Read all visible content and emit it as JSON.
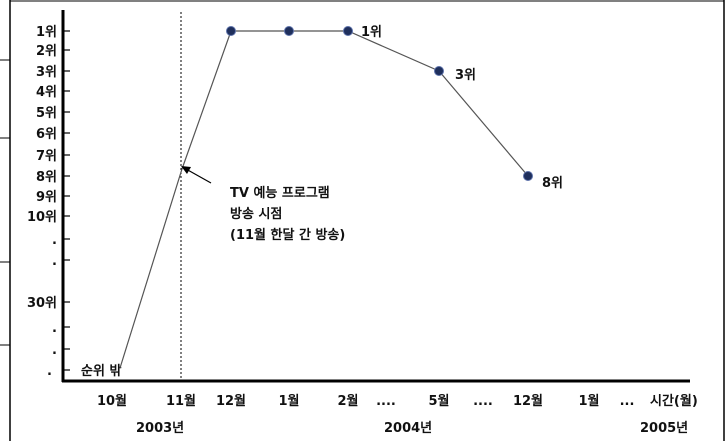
{
  "chart_data": {
    "type": "line",
    "x_ticks": [
      "10월",
      "11월",
      "12월",
      "1월",
      "2월",
      "....",
      "5월",
      "....",
      "12월",
      "1월",
      "..."
    ],
    "x_axis_label": "시간(월)",
    "years": [
      "2003년",
      "2004년",
      "2005년"
    ],
    "y_ticks": [
      "1위",
      "2위",
      "3위",
      "4위",
      "5위",
      "6위",
      "7위",
      "8위",
      "9위",
      "10위",
      ".",
      ".",
      "30위",
      ".",
      ".",
      "순위 밖"
    ],
    "series": [
      {
        "points": [
          {
            "x": "10월",
            "y": "순위 밖"
          },
          {
            "x": "11월",
            "y": "8위"
          },
          {
            "x": "12월",
            "y": "1위"
          },
          {
            "x": "1월",
            "y": "1위"
          },
          {
            "x": "2월",
            "y": "1위"
          },
          {
            "x": "5월",
            "y": "3위"
          },
          {
            "x": "12월",
            "y": "8위"
          }
        ]
      }
    ],
    "point_labels": [
      "1위",
      "3위",
      "8위"
    ],
    "annotation_lines": [
      "TV 예능 프로그램",
      "방송 시점",
      "(11월 한달 간 방송)"
    ],
    "grid": false,
    "colors": {
      "line": "#555555",
      "marker": "#1f2f5c",
      "axis": "#000000"
    }
  }
}
